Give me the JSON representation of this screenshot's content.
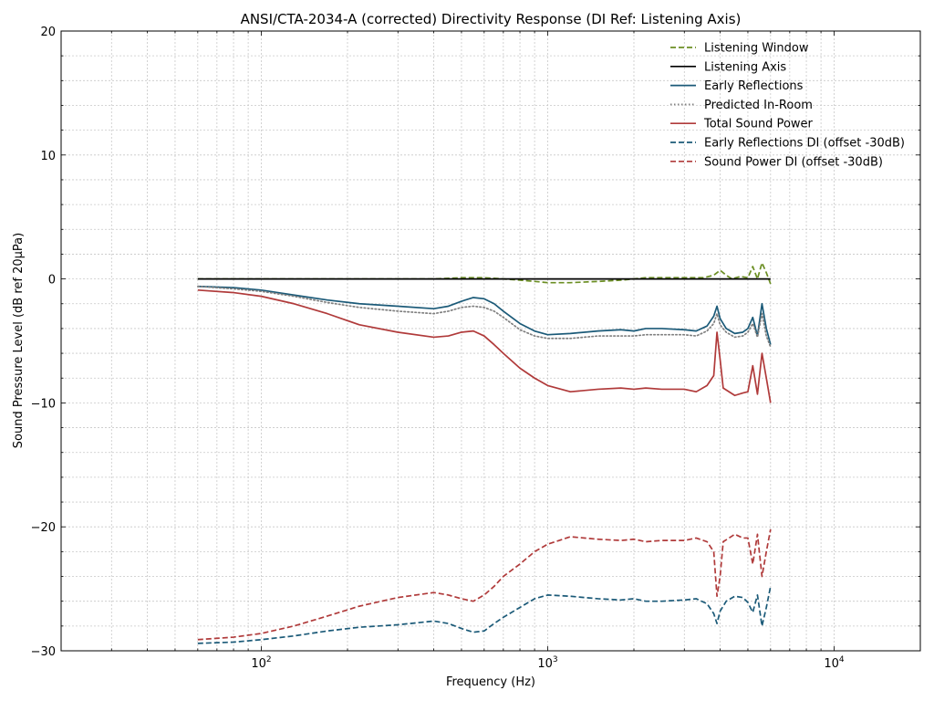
{
  "chart_data": {
    "type": "line",
    "title": "ANSI/CTA-2034-A (corrected) Directivity Response (DI Ref: Listening Axis)",
    "xlabel": "Frequency (Hz)",
    "ylabel": "Sound Pressure Level (dB ref 20µPa)",
    "x_scale": "log",
    "xlim": [
      20,
      20000
    ],
    "ylim": [
      -30,
      20
    ],
    "x_ticks": [
      {
        "value": 100,
        "base": "10",
        "exp": "2"
      },
      {
        "value": 1000,
        "base": "10",
        "exp": "3"
      },
      {
        "value": 10000,
        "base": "10",
        "exp": "4"
      }
    ],
    "y_ticks": [
      {
        "value": 20,
        "label": "20"
      },
      {
        "value": 10,
        "label": "10"
      },
      {
        "value": 0,
        "label": "0"
      },
      {
        "value": -10,
        "label": "−10"
      },
      {
        "value": -20,
        "label": "−20"
      },
      {
        "value": -30,
        "label": "−30"
      }
    ],
    "grid": true,
    "legend_position": "top-right",
    "series": [
      {
        "name": "Listening Window",
        "color": "#6b8e23",
        "style": "dashed",
        "points": [
          [
            60,
            0
          ],
          [
            100,
            0
          ],
          [
            200,
            0
          ],
          [
            300,
            0
          ],
          [
            400,
            0
          ],
          [
            500,
            0.1
          ],
          [
            600,
            0.1
          ],
          [
            700,
            0
          ],
          [
            800,
            -0.1
          ],
          [
            900,
            -0.2
          ],
          [
            1000,
            -0.3
          ],
          [
            1200,
            -0.3
          ],
          [
            1500,
            -0.2
          ],
          [
            1800,
            -0.1
          ],
          [
            2000,
            0
          ],
          [
            2200,
            0.1
          ],
          [
            2500,
            0.1
          ],
          [
            3000,
            0.1
          ],
          [
            3500,
            0.1
          ],
          [
            3800,
            0.3
          ],
          [
            4000,
            0.7
          ],
          [
            4200,
            0.3
          ],
          [
            4400,
            0
          ],
          [
            4700,
            0.2
          ],
          [
            5000,
            0.1
          ],
          [
            5200,
            1.0
          ],
          [
            5400,
            0
          ],
          [
            5600,
            1.3
          ],
          [
            5800,
            0.5
          ],
          [
            6000,
            -0.4
          ]
        ]
      },
      {
        "name": "Listening Axis",
        "color": "#000000",
        "style": "solid",
        "points": [
          [
            60,
            0
          ],
          [
            6000,
            0
          ]
        ]
      },
      {
        "name": "Early Reflections",
        "color": "#1b5a78",
        "style": "solid",
        "points": [
          [
            60,
            -0.6
          ],
          [
            80,
            -0.7
          ],
          [
            100,
            -0.9
          ],
          [
            130,
            -1.3
          ],
          [
            170,
            -1.7
          ],
          [
            220,
            -2.0
          ],
          [
            300,
            -2.2
          ],
          [
            400,
            -2.4
          ],
          [
            450,
            -2.2
          ],
          [
            500,
            -1.8
          ],
          [
            550,
            -1.5
          ],
          [
            600,
            -1.6
          ],
          [
            650,
            -2.0
          ],
          [
            700,
            -2.6
          ],
          [
            800,
            -3.6
          ],
          [
            900,
            -4.2
          ],
          [
            1000,
            -4.5
          ],
          [
            1200,
            -4.4
          ],
          [
            1500,
            -4.2
          ],
          [
            1800,
            -4.1
          ],
          [
            2000,
            -4.2
          ],
          [
            2200,
            -4.0
          ],
          [
            2500,
            -4.0
          ],
          [
            3000,
            -4.1
          ],
          [
            3300,
            -4.2
          ],
          [
            3600,
            -3.8
          ],
          [
            3800,
            -3.0
          ],
          [
            3900,
            -2.2
          ],
          [
            4000,
            -3.2
          ],
          [
            4200,
            -4.0
          ],
          [
            4500,
            -4.4
          ],
          [
            4800,
            -4.3
          ],
          [
            5000,
            -4.0
          ],
          [
            5200,
            -3.1
          ],
          [
            5400,
            -4.6
          ],
          [
            5600,
            -2.0
          ],
          [
            5800,
            -4.0
          ],
          [
            6000,
            -5.3
          ]
        ]
      },
      {
        "name": "Predicted In-Room",
        "color": "#808080",
        "style": "dotted",
        "points": [
          [
            60,
            -0.6
          ],
          [
            80,
            -0.8
          ],
          [
            100,
            -1.0
          ],
          [
            130,
            -1.4
          ],
          [
            170,
            -1.9
          ],
          [
            220,
            -2.3
          ],
          [
            300,
            -2.6
          ],
          [
            400,
            -2.8
          ],
          [
            450,
            -2.6
          ],
          [
            500,
            -2.3
          ],
          [
            550,
            -2.2
          ],
          [
            600,
            -2.3
          ],
          [
            650,
            -2.6
          ],
          [
            700,
            -3.1
          ],
          [
            800,
            -4.1
          ],
          [
            900,
            -4.6
          ],
          [
            1000,
            -4.8
          ],
          [
            1200,
            -4.8
          ],
          [
            1500,
            -4.6
          ],
          [
            1800,
            -4.6
          ],
          [
            2000,
            -4.6
          ],
          [
            2200,
            -4.5
          ],
          [
            2500,
            -4.5
          ],
          [
            3000,
            -4.5
          ],
          [
            3300,
            -4.6
          ],
          [
            3600,
            -4.2
          ],
          [
            3800,
            -3.6
          ],
          [
            3900,
            -2.8
          ],
          [
            4000,
            -3.7
          ],
          [
            4200,
            -4.3
          ],
          [
            4500,
            -4.7
          ],
          [
            4800,
            -4.6
          ],
          [
            5000,
            -4.3
          ],
          [
            5200,
            -3.6
          ],
          [
            5400,
            -4.7
          ],
          [
            5600,
            -2.8
          ],
          [
            5800,
            -4.6
          ],
          [
            6000,
            -5.5
          ]
        ]
      },
      {
        "name": "Total Sound Power",
        "color": "#b03a3a",
        "style": "solid",
        "points": [
          [
            60,
            -0.9
          ],
          [
            80,
            -1.1
          ],
          [
            100,
            -1.4
          ],
          [
            130,
            -2.0
          ],
          [
            170,
            -2.8
          ],
          [
            220,
            -3.7
          ],
          [
            300,
            -4.3
          ],
          [
            400,
            -4.7
          ],
          [
            450,
            -4.6
          ],
          [
            500,
            -4.3
          ],
          [
            550,
            -4.2
          ],
          [
            600,
            -4.6
          ],
          [
            650,
            -5.3
          ],
          [
            700,
            -6.0
          ],
          [
            800,
            -7.2
          ],
          [
            900,
            -8.0
          ],
          [
            1000,
            -8.6
          ],
          [
            1200,
            -9.1
          ],
          [
            1500,
            -8.9
          ],
          [
            1800,
            -8.8
          ],
          [
            2000,
            -8.9
          ],
          [
            2200,
            -8.8
          ],
          [
            2500,
            -8.9
          ],
          [
            3000,
            -8.9
          ],
          [
            3300,
            -9.1
          ],
          [
            3600,
            -8.6
          ],
          [
            3800,
            -7.8
          ],
          [
            3900,
            -4.3
          ],
          [
            4000,
            -6.5
          ],
          [
            4100,
            -8.8
          ],
          [
            4500,
            -9.4
          ],
          [
            4800,
            -9.2
          ],
          [
            5000,
            -9.1
          ],
          [
            5200,
            -7.0
          ],
          [
            5400,
            -9.3
          ],
          [
            5600,
            -6.0
          ],
          [
            5800,
            -8.0
          ],
          [
            6000,
            -10.0
          ]
        ]
      },
      {
        "name": "Early Reflections DI (offset -30dB)",
        "color": "#1b5a78",
        "style": "dashed",
        "points": [
          [
            60,
            -29.4
          ],
          [
            80,
            -29.3
          ],
          [
            100,
            -29.1
          ],
          [
            130,
            -28.8
          ],
          [
            170,
            -28.4
          ],
          [
            220,
            -28.1
          ],
          [
            300,
            -27.9
          ],
          [
            400,
            -27.6
          ],
          [
            450,
            -27.8
          ],
          [
            500,
            -28.2
          ],
          [
            550,
            -28.5
          ],
          [
            600,
            -28.4
          ],
          [
            650,
            -27.8
          ],
          [
            700,
            -27.3
          ],
          [
            800,
            -26.5
          ],
          [
            900,
            -25.8
          ],
          [
            1000,
            -25.5
          ],
          [
            1200,
            -25.6
          ],
          [
            1500,
            -25.8
          ],
          [
            1800,
            -25.9
          ],
          [
            2000,
            -25.8
          ],
          [
            2200,
            -26.0
          ],
          [
            2500,
            -26.0
          ],
          [
            3000,
            -25.9
          ],
          [
            3300,
            -25.8
          ],
          [
            3600,
            -26.2
          ],
          [
            3800,
            -27.0
          ],
          [
            3900,
            -27.8
          ],
          [
            4000,
            -26.8
          ],
          [
            4200,
            -26.0
          ],
          [
            4500,
            -25.6
          ],
          [
            4800,
            -25.7
          ],
          [
            5000,
            -26.1
          ],
          [
            5200,
            -26.9
          ],
          [
            5400,
            -25.5
          ],
          [
            5600,
            -28.0
          ],
          [
            5800,
            -26.5
          ],
          [
            6000,
            -24.8
          ]
        ]
      },
      {
        "name": "Sound Power DI (offset -30dB)",
        "color": "#b03a3a",
        "style": "dashed",
        "points": [
          [
            60,
            -29.1
          ],
          [
            80,
            -28.9
          ],
          [
            100,
            -28.6
          ],
          [
            130,
            -28.0
          ],
          [
            170,
            -27.2
          ],
          [
            220,
            -26.4
          ],
          [
            300,
            -25.7
          ],
          [
            400,
            -25.3
          ],
          [
            450,
            -25.5
          ],
          [
            500,
            -25.8
          ],
          [
            550,
            -26.0
          ],
          [
            600,
            -25.5
          ],
          [
            650,
            -24.8
          ],
          [
            700,
            -24.0
          ],
          [
            800,
            -23.0
          ],
          [
            900,
            -22.0
          ],
          [
            1000,
            -21.4
          ],
          [
            1200,
            -20.8
          ],
          [
            1500,
            -21.0
          ],
          [
            1800,
            -21.1
          ],
          [
            2000,
            -21.0
          ],
          [
            2200,
            -21.2
          ],
          [
            2500,
            -21.1
          ],
          [
            3000,
            -21.1
          ],
          [
            3300,
            -20.9
          ],
          [
            3600,
            -21.2
          ],
          [
            3800,
            -22.0
          ],
          [
            3900,
            -25.6
          ],
          [
            4000,
            -24.0
          ],
          [
            4100,
            -21.2
          ],
          [
            4500,
            -20.6
          ],
          [
            4800,
            -20.9
          ],
          [
            5000,
            -20.9
          ],
          [
            5200,
            -23.0
          ],
          [
            5400,
            -20.6
          ],
          [
            5600,
            -24.0
          ],
          [
            5800,
            -22.0
          ],
          [
            6000,
            -20.2
          ]
        ]
      }
    ]
  }
}
